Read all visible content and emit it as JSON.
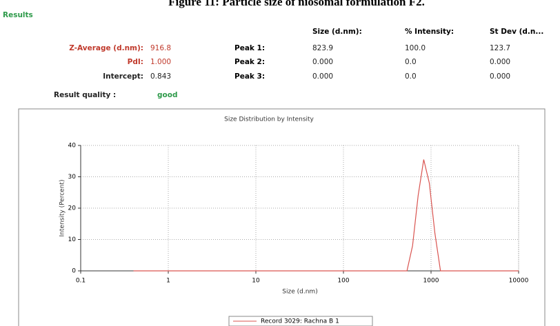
{
  "figure_title": "Figure 11: Particle size of niosomal formulation F2.",
  "results_heading": "Results",
  "summary": [
    {
      "label": "Z-Average (d.nm):",
      "value": "916.8"
    },
    {
      "label": "PdI:",
      "value": "1.000"
    },
    {
      "label": "Intercept:",
      "value": "0.843"
    }
  ],
  "quality": {
    "label": "Result quality :",
    "value": "good"
  },
  "peaks": {
    "columns": [
      "Size (d.nm):",
      "% Intensity:",
      "St Dev (d.n..."
    ],
    "rows": [
      {
        "label": "Peak 1:",
        "values": [
          "823.9",
          "100.0",
          "123.7"
        ]
      },
      {
        "label": "Peak 2:",
        "values": [
          "0.000",
          "0.0",
          "0.000"
        ]
      },
      {
        "label": "Peak 3:",
        "values": [
          "0.000",
          "0.0",
          "0.000"
        ]
      }
    ]
  },
  "chart_data": {
    "type": "line",
    "title": "Size Distribution by Intensity",
    "xlabel": "Size (d.nm)",
    "ylabel": "Intensity (Percent)",
    "x": [
      0.4,
      1,
      10,
      100,
      531,
      615,
      712,
      825,
      955,
      1106,
      1281,
      10000
    ],
    "series": [
      {
        "name": "Record 3029: Rachna B 1",
        "color": "#d9534f",
        "values": [
          0,
          0,
          0,
          0,
          0,
          8,
          24,
          35.5,
          28,
          12,
          0,
          0
        ]
      }
    ],
    "xlim": [
      0.1,
      10000
    ],
    "xticks": [
      0.1,
      1,
      10,
      100,
      1000,
      10000
    ],
    "ylim": [
      0,
      40
    ],
    "yticks": [
      0,
      10,
      20,
      30,
      40
    ],
    "log_x": true,
    "grid": true
  }
}
